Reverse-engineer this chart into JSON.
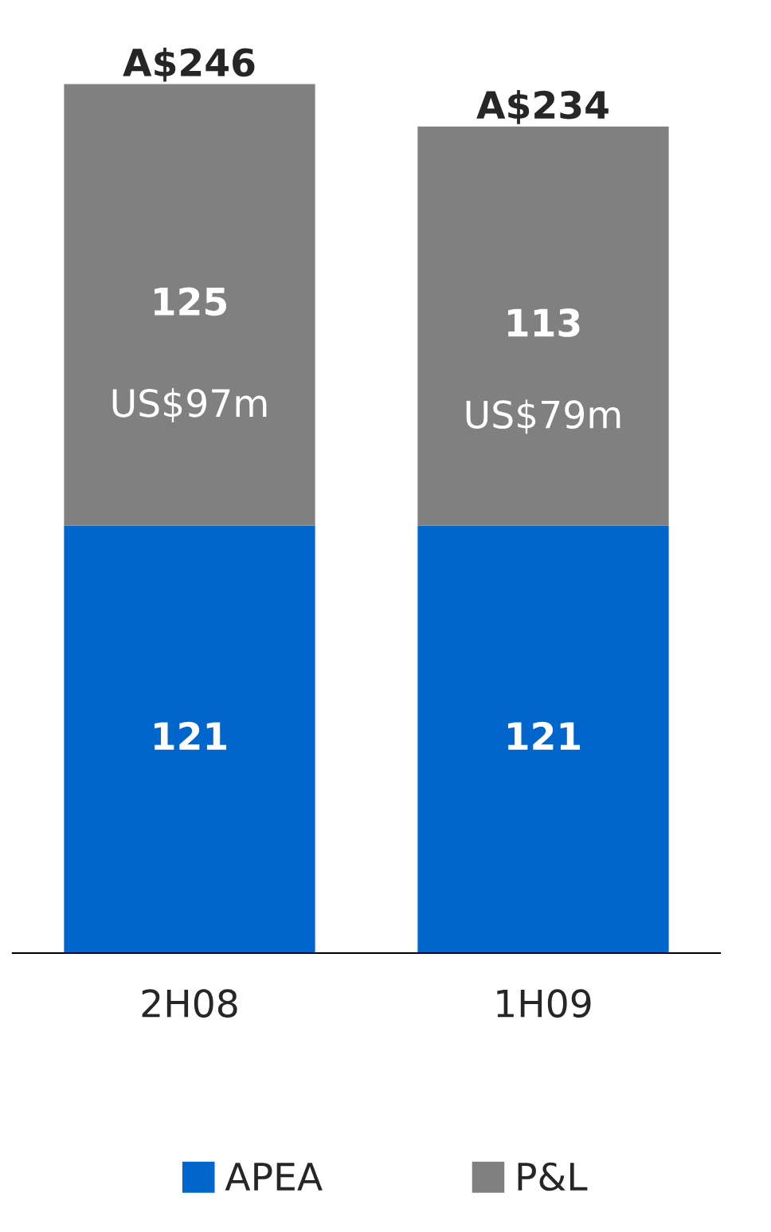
{
  "chart_data": {
    "type": "bar",
    "stacked": true,
    "categories": [
      "2H08",
      "1H09"
    ],
    "series": [
      {
        "name": "APEA",
        "color": "#0066cc",
        "values": [
          121,
          121
        ]
      },
      {
        "name": "P&L",
        "color": "#808080",
        "values": [
          125,
          113
        ]
      }
    ],
    "data_labels": true,
    "totals": [
      "A$246",
      "A$234"
    ],
    "annotations": [
      "US$97m",
      "US$79m"
    ],
    "legend": "bottom",
    "grid": false
  }
}
